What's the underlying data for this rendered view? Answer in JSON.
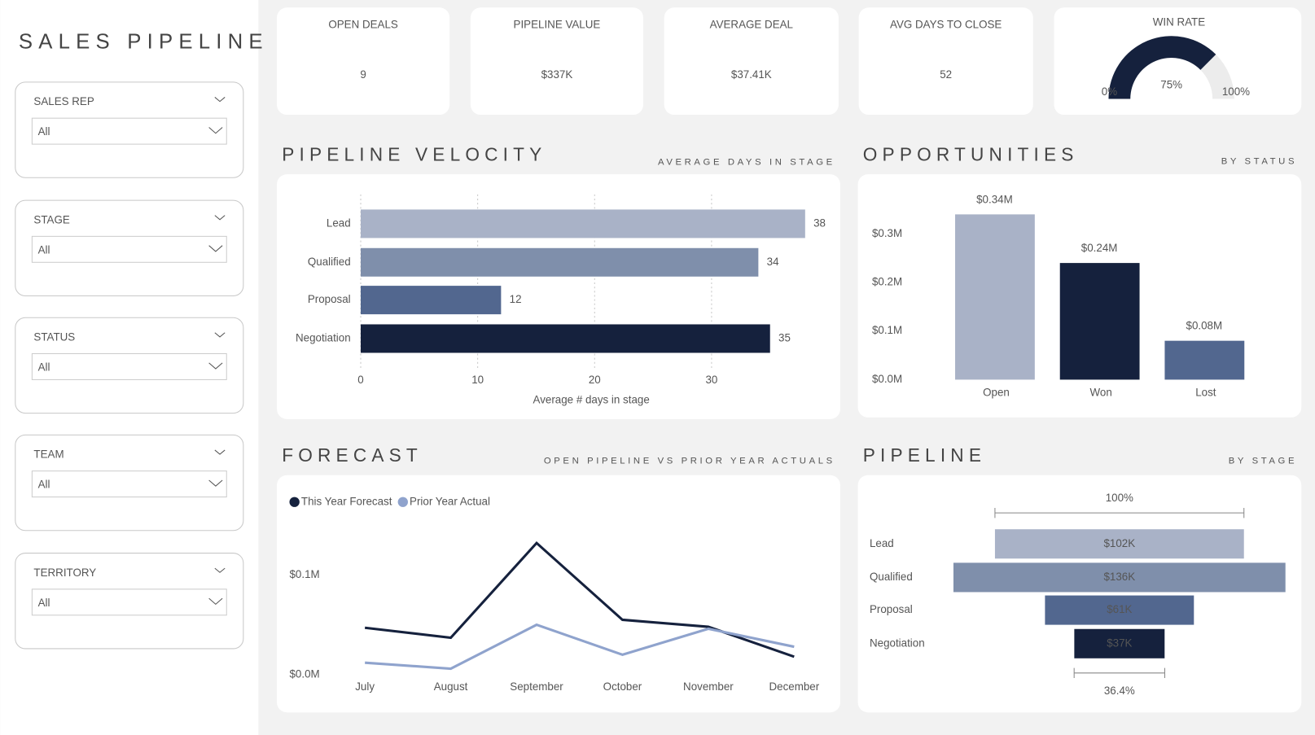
{
  "title": "SALES PIPELINE",
  "filters": [
    {
      "label": "SALES REP",
      "value": "All"
    },
    {
      "label": "STAGE",
      "value": "All"
    },
    {
      "label": "STATUS",
      "value": "All"
    },
    {
      "label": "TEAM",
      "value": "All"
    },
    {
      "label": "TERRITORY",
      "value": "All"
    }
  ],
  "kpis": [
    {
      "label": "OPEN DEALS",
      "value": "9"
    },
    {
      "label": "PIPELINE VALUE",
      "value": "$337K"
    },
    {
      "label": "AVERAGE DEAL",
      "value": "$37.41K"
    },
    {
      "label": "AVG DAYS TO CLOSE",
      "value": "52"
    }
  ],
  "chart_data": [
    {
      "type": "gauge",
      "title": "WIN RATE",
      "values": [
        75
      ],
      "value_labels": [
        "75%"
      ],
      "color": "#15213d",
      "track_color": "#ececec",
      "ylim": [
        0,
        100
      ],
      "yticks": [
        {
          "value": 0,
          "label": "0%"
        },
        {
          "value": 100,
          "label": "100%"
        }
      ]
    },
    {
      "type": "hbar",
      "title": "PIPELINE VELOCITY",
      "subtitle": "AVERAGE DAYS IN STAGE",
      "xlabel": "Average # days in stage",
      "categories": [
        "Lead",
        "Qualified",
        "Proposal",
        "Negotiation"
      ],
      "values": [
        38,
        34,
        12,
        35
      ],
      "colors": [
        "#a9b2c7",
        "#7f8fab",
        "#52678f",
        "#15213d"
      ],
      "xlim": [
        0,
        40
      ],
      "xticks": [
        0,
        10,
        20,
        30
      ],
      "grid": true
    },
    {
      "type": "column",
      "title": "OPPORTUNITIES",
      "subtitle": "BY STATUS",
      "categories": [
        "Open",
        "Won",
        "Lost"
      ],
      "values": [
        0.34,
        0.24,
        0.08
      ],
      "value_labels": [
        "$0.34M",
        "$0.24M",
        "$0.08M"
      ],
      "colors": [
        "#a9b2c7",
        "#15213d",
        "#52678f"
      ],
      "ylim": [
        0,
        0.35
      ],
      "yticks": [
        {
          "value": 0,
          "label": "$0.0M"
        },
        {
          "value": 0.1,
          "label": "$0.1M"
        },
        {
          "value": 0.2,
          "label": "$0.2M"
        },
        {
          "value": 0.3,
          "label": "$0.3M"
        }
      ]
    },
    {
      "type": "line",
      "title": "FORECAST",
      "subtitle": "OPEN PIPELINE VS PRIOR YEAR ACTUALS",
      "categories": [
        "July",
        "August",
        "September",
        "October",
        "November",
        "December"
      ],
      "series": [
        {
          "name": "This Year Forecast",
          "color": "#15213d",
          "values": [
            0.047,
            0.037,
            0.132,
            0.055,
            0.048,
            0.018
          ]
        },
        {
          "name": "Prior Year Actual",
          "color": "#8fa3cd",
          "values": [
            0.012,
            0.006,
            0.05,
            0.02,
            0.046,
            0.028
          ]
        }
      ],
      "ylim": [
        0,
        0.14
      ],
      "yticks": [
        {
          "value": 0,
          "label": "$0.0M"
        },
        {
          "value": 0.1,
          "label": "$0.1M"
        }
      ]
    },
    {
      "type": "funnel",
      "title": "PIPELINE",
      "subtitle": "BY STAGE",
      "categories": [
        "Lead",
        "Qualified",
        "Proposal",
        "Negotiation"
      ],
      "values": [
        102,
        136,
        61,
        37
      ],
      "value_labels": [
        "$102K",
        "$136K",
        "$61K",
        "$37K"
      ],
      "colors": [
        "#a9b2c7",
        "#7f8fab",
        "#52678f",
        "#15213d"
      ],
      "conversion": [
        {
          "value": 100,
          "label": "100%"
        },
        {
          "value": 36.4,
          "label": "36.4%"
        }
      ]
    }
  ]
}
